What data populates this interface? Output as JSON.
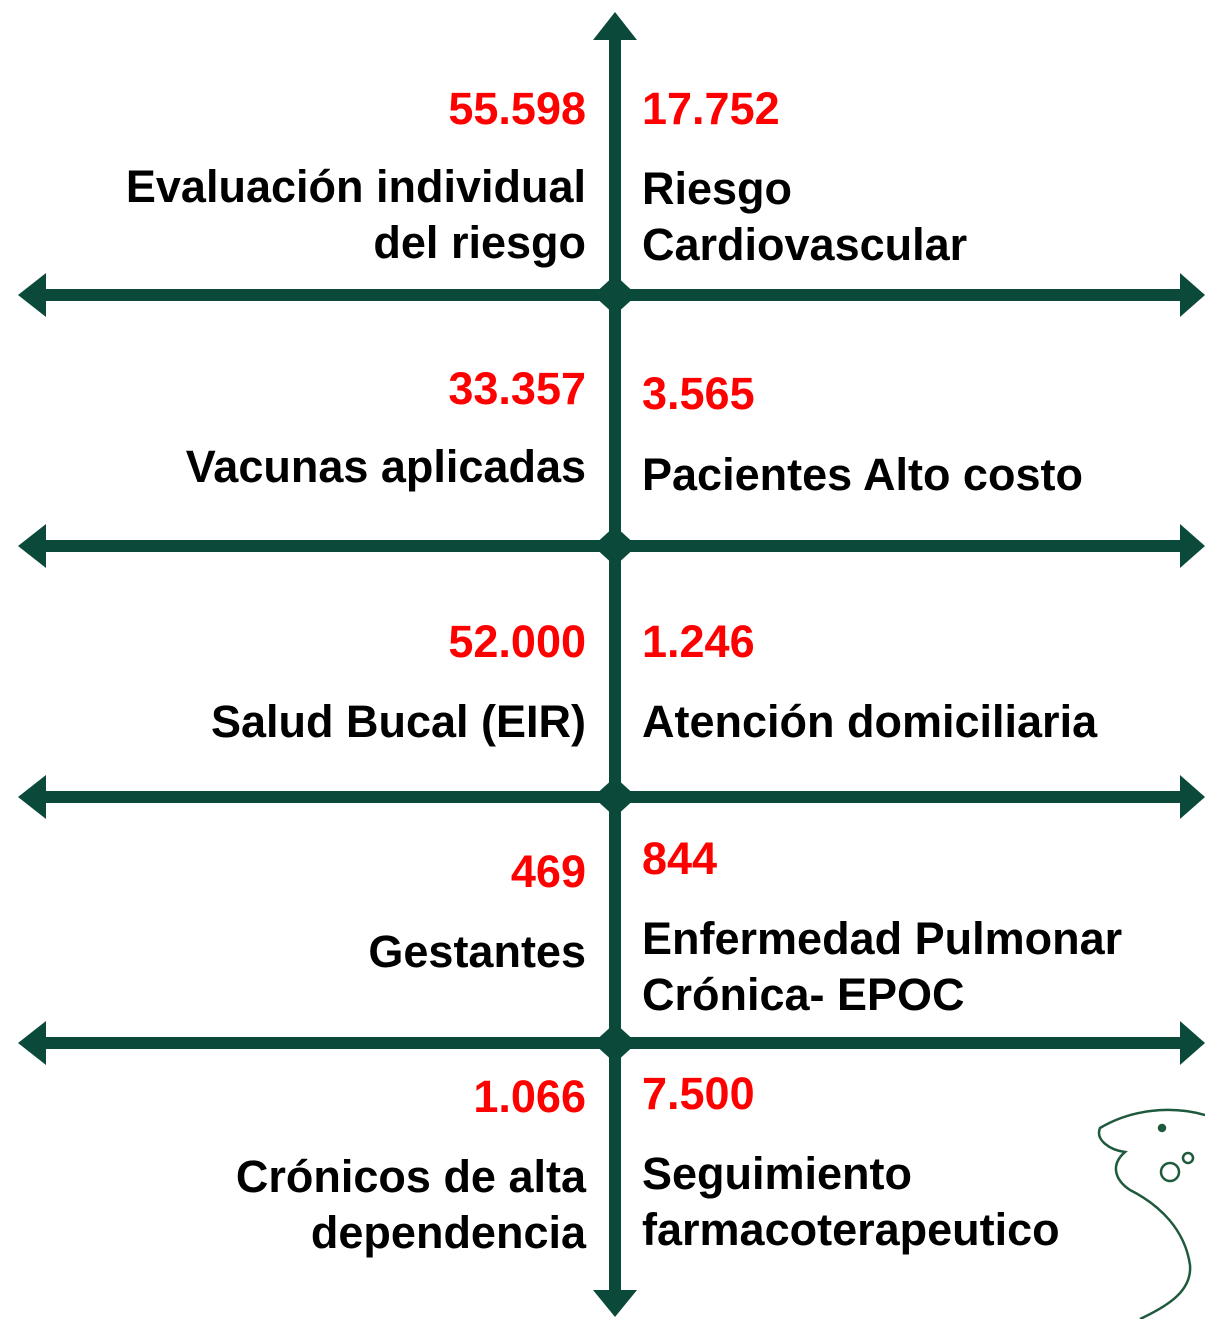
{
  "rows": [
    {
      "left": {
        "value": "55.598",
        "label": [
          "Evaluación individual",
          "del riesgo"
        ]
      },
      "right": {
        "value": "17.752",
        "label": [
          "Riesgo",
          "Cardiovascular"
        ]
      }
    },
    {
      "left": {
        "value": "33.357",
        "label": [
          "Vacunas aplicadas"
        ]
      },
      "right": {
        "value": "3.565",
        "label": [
          "Pacientes Alto costo"
        ]
      }
    },
    {
      "left": {
        "value": "52.000",
        "label": [
          "Salud Bucal (EIR)"
        ]
      },
      "right": {
        "value": "1.246",
        "label": [
          "Atención domiciliaria"
        ]
      }
    },
    {
      "left": {
        "value": "469",
        "label": [
          "Gestantes"
        ]
      },
      "right": {
        "value": "844",
        "label": [
          "Enfermedad Pulmonar",
          "Crónica- EPOC"
        ]
      }
    },
    {
      "left": {
        "value": "1.066",
        "label": [
          "Crónicos de alta",
          "dependencia"
        ]
      },
      "right": {
        "value": "7.500",
        "label": [
          "Seguimiento",
          "farmacoterapeutico"
        ]
      }
    }
  ]
}
